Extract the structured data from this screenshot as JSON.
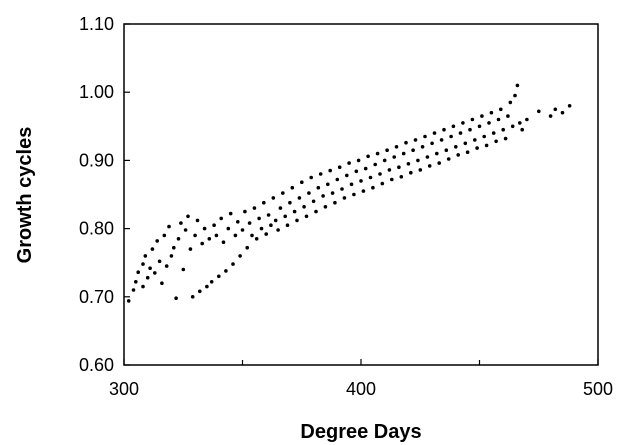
{
  "chart_data": {
    "type": "scatter",
    "xlabel": "Degree Days",
    "ylabel": "Growth cycles",
    "xlim": [
      300,
      500
    ],
    "ylim": [
      0.6,
      1.1
    ],
    "x_ticks": [
      300,
      400,
      500
    ],
    "x_tick_labels": [
      "300",
      "400",
      "500"
    ],
    "y_ticks": [
      0.6,
      0.7,
      0.8,
      0.9,
      1.0,
      1.1
    ],
    "y_tick_labels": [
      "0.60",
      "0.70",
      "0.80",
      "0.90",
      "1.00",
      "1.10"
    ],
    "grid": false,
    "marker_color": "#000000",
    "series": [
      {
        "points": [
          [
            302,
            0.694
          ],
          [
            304,
            0.71
          ],
          [
            305,
            0.722
          ],
          [
            306,
            0.736
          ],
          [
            308,
            0.748
          ],
          [
            308,
            0.715
          ],
          [
            309,
            0.76
          ],
          [
            310,
            0.728
          ],
          [
            311,
            0.742
          ],
          [
            312,
            0.77
          ],
          [
            313,
            0.735
          ],
          [
            314,
            0.782
          ],
          [
            315,
            0.752
          ],
          [
            316,
            0.72
          ],
          [
            317,
            0.79
          ],
          [
            318,
            0.745
          ],
          [
            319,
            0.803
          ],
          [
            320,
            0.76
          ],
          [
            321,
            0.772
          ],
          [
            322,
            0.698
          ],
          [
            323,
            0.785
          ],
          [
            324,
            0.808
          ],
          [
            325,
            0.74
          ],
          [
            326,
            0.798
          ],
          [
            327,
            0.818
          ],
          [
            328,
            0.77
          ],
          [
            329,
            0.7
          ],
          [
            330,
            0.79
          ],
          [
            331,
            0.812
          ],
          [
            332,
            0.708
          ],
          [
            333,
            0.778
          ],
          [
            334,
            0.8
          ],
          [
            335,
            0.715
          ],
          [
            336,
            0.785
          ],
          [
            337,
            0.722
          ],
          [
            338,
            0.805
          ],
          [
            339,
            0.79
          ],
          [
            340,
            0.73
          ],
          [
            341,
            0.815
          ],
          [
            342,
            0.78
          ],
          [
            343,
            0.738
          ],
          [
            344,
            0.8
          ],
          [
            345,
            0.822
          ],
          [
            346,
            0.748
          ],
          [
            347,
            0.79
          ],
          [
            348,
            0.81
          ],
          [
            349,
            0.76
          ],
          [
            350,
            0.798
          ],
          [
            351,
            0.825
          ],
          [
            352,
            0.772
          ],
          [
            353,
            0.808
          ],
          [
            354,
            0.79
          ],
          [
            355,
            0.83
          ],
          [
            356,
            0.785
          ],
          [
            357,
            0.815
          ],
          [
            358,
            0.8
          ],
          [
            359,
            0.838
          ],
          [
            360,
            0.792
          ],
          [
            361,
            0.82
          ],
          [
            362,
            0.805
          ],
          [
            363,
            0.845
          ],
          [
            364,
            0.812
          ],
          [
            365,
            0.798
          ],
          [
            366,
            0.83
          ],
          [
            367,
            0.852
          ],
          [
            368,
            0.818
          ],
          [
            369,
            0.805
          ],
          [
            370,
            0.838
          ],
          [
            371,
            0.86
          ],
          [
            372,
            0.825
          ],
          [
            373,
            0.812
          ],
          [
            374,
            0.845
          ],
          [
            375,
            0.868
          ],
          [
            376,
            0.832
          ],
          [
            377,
            0.818
          ],
          [
            378,
            0.852
          ],
          [
            379,
            0.875
          ],
          [
            380,
            0.84
          ],
          [
            381,
            0.825
          ],
          [
            382,
            0.86
          ],
          [
            383,
            0.88
          ],
          [
            384,
            0.848
          ],
          [
            385,
            0.832
          ],
          [
            386,
            0.865
          ],
          [
            387,
            0.885
          ],
          [
            388,
            0.852
          ],
          [
            389,
            0.838
          ],
          [
            390,
            0.872
          ],
          [
            391,
            0.89
          ],
          [
            392,
            0.858
          ],
          [
            393,
            0.845
          ],
          [
            394,
            0.878
          ],
          [
            395,
            0.896
          ],
          [
            396,
            0.865
          ],
          [
            397,
            0.85
          ],
          [
            398,
            0.884
          ],
          [
            399,
            0.9
          ],
          [
            400,
            0.87
          ],
          [
            401,
            0.855
          ],
          [
            402,
            0.888
          ],
          [
            403,
            0.906
          ],
          [
            404,
            0.875
          ],
          [
            405,
            0.86
          ],
          [
            406,
            0.894
          ],
          [
            407,
            0.91
          ],
          [
            408,
            0.88
          ],
          [
            409,
            0.866
          ],
          [
            410,
            0.9
          ],
          [
            411,
            0.915
          ],
          [
            412,
            0.886
          ],
          [
            413,
            0.872
          ],
          [
            414,
            0.905
          ],
          [
            415,
            0.92
          ],
          [
            416,
            0.89
          ],
          [
            417,
            0.876
          ],
          [
            418,
            0.91
          ],
          [
            419,
            0.926
          ],
          [
            420,
            0.895
          ],
          [
            421,
            0.882
          ],
          [
            422,
            0.915
          ],
          [
            423,
            0.93
          ],
          [
            424,
            0.9
          ],
          [
            425,
            0.886
          ],
          [
            426,
            0.92
          ],
          [
            427,
            0.935
          ],
          [
            428,
            0.905
          ],
          [
            429,
            0.892
          ],
          [
            430,
            0.925
          ],
          [
            431,
            0.94
          ],
          [
            432,
            0.91
          ],
          [
            433,
            0.896
          ],
          [
            434,
            0.93
          ],
          [
            435,
            0.945
          ],
          [
            436,
            0.915
          ],
          [
            437,
            0.902
          ],
          [
            438,
            0.935
          ],
          [
            439,
            0.95
          ],
          [
            440,
            0.92
          ],
          [
            441,
            0.908
          ],
          [
            442,
            0.94
          ],
          [
            443,
            0.955
          ],
          [
            444,
            0.925
          ],
          [
            445,
            0.912
          ],
          [
            446,
            0.945
          ],
          [
            447,
            0.96
          ],
          [
            448,
            0.93
          ],
          [
            449,
            0.918
          ],
          [
            450,
            0.95
          ],
          [
            451,
            0.965
          ],
          [
            452,
            0.935
          ],
          [
            453,
            0.922
          ],
          [
            454,
            0.955
          ],
          [
            455,
            0.97
          ],
          [
            456,
            0.94
          ],
          [
            457,
            0.928
          ],
          [
            458,
            0.96
          ],
          [
            459,
            0.975
          ],
          [
            460,
            0.945
          ],
          [
            461,
            0.932
          ],
          [
            462,
            0.965
          ],
          [
            463,
            0.985
          ],
          [
            464,
            0.95
          ],
          [
            465,
            0.995
          ],
          [
            466,
            1.01
          ],
          [
            467,
            0.955
          ],
          [
            468,
            0.945
          ],
          [
            470,
            0.96
          ],
          [
            475,
            0.972
          ],
          [
            480,
            0.965
          ],
          [
            482,
            0.975
          ],
          [
            485,
            0.97
          ],
          [
            488,
            0.98
          ]
        ]
      }
    ]
  }
}
